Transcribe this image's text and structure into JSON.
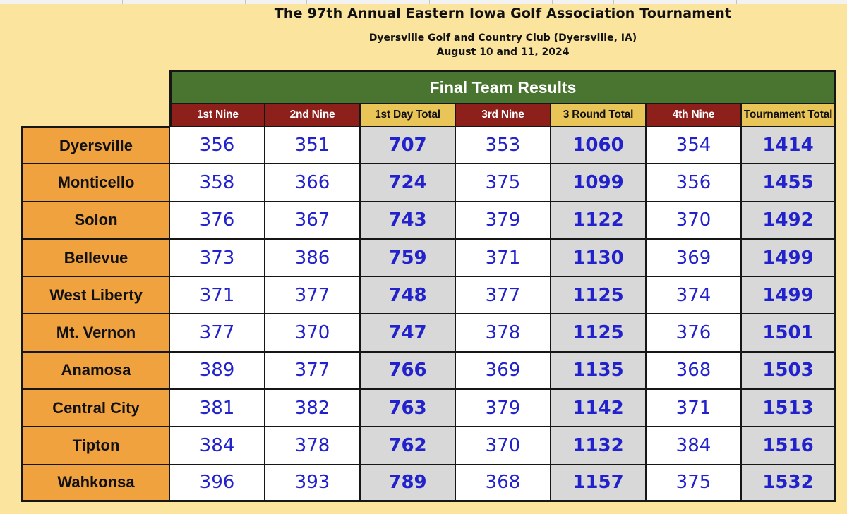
{
  "page": {
    "title": "The 97th Annual Eastern Iowa Golf Association Tournament",
    "subtitle": "Dyersville Golf and Country Club (Dyersville, IA)",
    "date_line": "August 10 and 11, 2024"
  },
  "colors": {
    "background": "#FAE49E",
    "banner_green": "#4A7530",
    "header_maroon": "#8E201C",
    "header_gold": "#E9C558",
    "team_orange": "#F0A23F",
    "total_gray": "#D8D8D8",
    "score_blue": "#2222CC",
    "border_black": "#161616"
  },
  "table": {
    "title": "Final Team Results",
    "columns": [
      {
        "label": "1st Nine",
        "style": "maroon"
      },
      {
        "label": "2nd Nine",
        "style": "maroon"
      },
      {
        "label": "1st Day Total",
        "style": "gold"
      },
      {
        "label": "3rd Nine",
        "style": "maroon"
      },
      {
        "label": "3 Round Total",
        "style": "gold"
      },
      {
        "label": "4th Nine",
        "style": "maroon"
      },
      {
        "label": "Tournament Total",
        "style": "gold"
      }
    ],
    "rows": [
      {
        "team": "Dyersville",
        "values": [
          356,
          351,
          707,
          353,
          1060,
          354,
          1414
        ]
      },
      {
        "team": "Monticello",
        "values": [
          358,
          366,
          724,
          375,
          1099,
          356,
          1455
        ]
      },
      {
        "team": "Solon",
        "values": [
          376,
          367,
          743,
          379,
          1122,
          370,
          1492
        ]
      },
      {
        "team": "Bellevue",
        "values": [
          373,
          386,
          759,
          371,
          1130,
          369,
          1499
        ]
      },
      {
        "team": "West Liberty",
        "values": [
          371,
          377,
          748,
          377,
          1125,
          374,
          1499
        ]
      },
      {
        "team": "Mt. Vernon",
        "values": [
          377,
          370,
          747,
          378,
          1125,
          376,
          1501
        ]
      },
      {
        "team": "Anamosa",
        "values": [
          389,
          377,
          766,
          369,
          1135,
          368,
          1503
        ]
      },
      {
        "team": "Central City",
        "values": [
          381,
          382,
          763,
          379,
          1142,
          371,
          1513
        ]
      },
      {
        "team": "Tipton",
        "values": [
          384,
          378,
          762,
          370,
          1132,
          384,
          1516
        ]
      },
      {
        "team": "Wahkonsa",
        "values": [
          396,
          393,
          789,
          368,
          1157,
          375,
          1532
        ]
      }
    ]
  }
}
